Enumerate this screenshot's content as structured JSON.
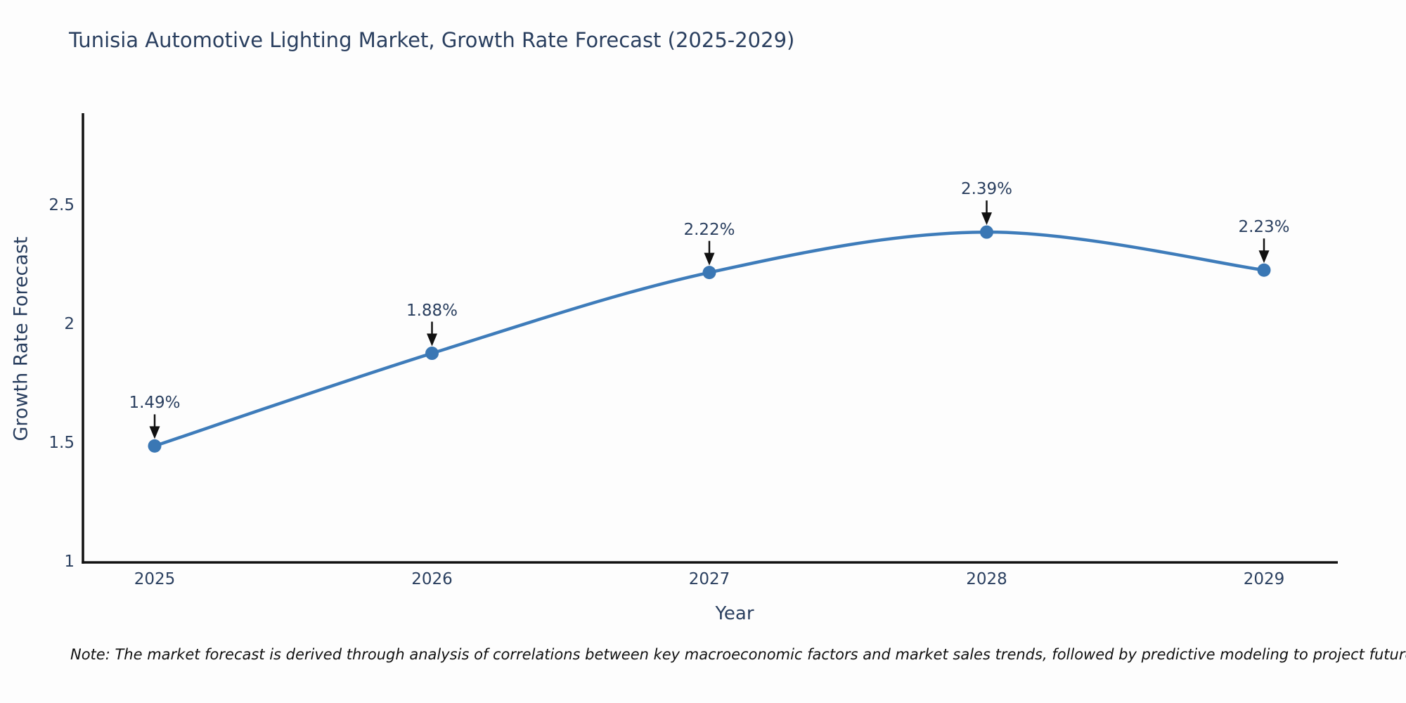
{
  "page": {
    "background_color": "#fdfdfd"
  },
  "colors": {
    "text": "#2a3f5f",
    "axis_line": "#111111",
    "series_line": "#3e7cba",
    "marker_fill": "#3a77b4",
    "annotation_arrow": "#111111",
    "footnote_text": "#111111"
  },
  "chart_data": {
    "type": "line",
    "title": "Tunisia Automotive Lighting Market, Growth Rate Forecast (2025-2029)",
    "xlabel": "Year",
    "ylabel": "Growth Rate Forecast",
    "categories": [
      "2025",
      "2026",
      "2027",
      "2028",
      "2029"
    ],
    "values": [
      1.49,
      1.88,
      2.22,
      2.39,
      2.23
    ],
    "point_labels": [
      "1.49%",
      "1.88%",
      "2.22%",
      "2.39%",
      "2.23%"
    ],
    "ytick_values": [
      1,
      1.5,
      2,
      2.5
    ],
    "ytick_labels": [
      "1",
      "1.5",
      "2",
      "2.5"
    ],
    "ylim": [
      1,
      2.89
    ],
    "line_shape": "spline",
    "grid": false,
    "legend_position": "none",
    "annotations": "each point labeled with percent value and a black down-arrow pointing at the marker"
  },
  "footnote": "Note: The market forecast is derived through analysis of correlations between key macroeconomic factors and market sales trends, followed by predictive modeling to project future sales"
}
